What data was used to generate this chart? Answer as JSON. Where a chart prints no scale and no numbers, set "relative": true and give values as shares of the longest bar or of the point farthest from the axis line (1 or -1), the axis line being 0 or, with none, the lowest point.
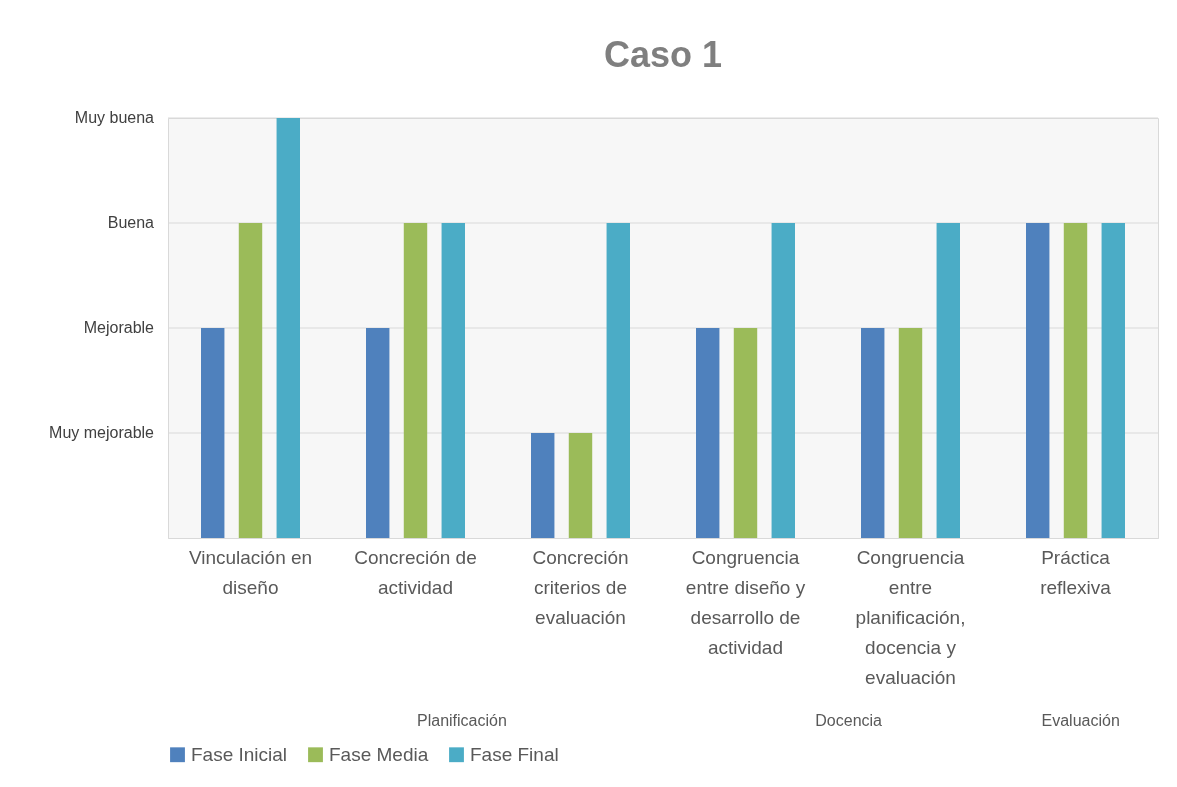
{
  "chart_data": {
    "type": "bar",
    "title": "Caso 1",
    "relative": true,
    "categories": [
      "Vinculación en diseño",
      "Concreción de actividad",
      "Concreción criterios de evaluación",
      "Congruencia entre diseño y desarrollo de actividad",
      "Congruencia entre planificación, docencia y evaluación",
      "Práctica reflexiva"
    ],
    "series": [
      {
        "name": "Fase Inicial",
        "color": "#4f81bd",
        "values": [
          0.5,
          0.5,
          0.25,
          0.5,
          0.5,
          0.75
        ]
      },
      {
        "name": "Fase Media",
        "color": "#9bbb59",
        "values": [
          0.75,
          0.75,
          0.25,
          0.5,
          0.5,
          0.75
        ]
      },
      {
        "name": "Fase Final",
        "color": "#4bacc6",
        "values": [
          1,
          0.75,
          0.75,
          0.75,
          0.75,
          0.75
        ]
      }
    ],
    "grid": "y",
    "legend": "bottom",
    "annotations": [
      "Muy mejorable",
      "Mejorable",
      "Buena",
      "Muy buena",
      "Planificación",
      "Docencia",
      "Evaluación"
    ]
  }
}
